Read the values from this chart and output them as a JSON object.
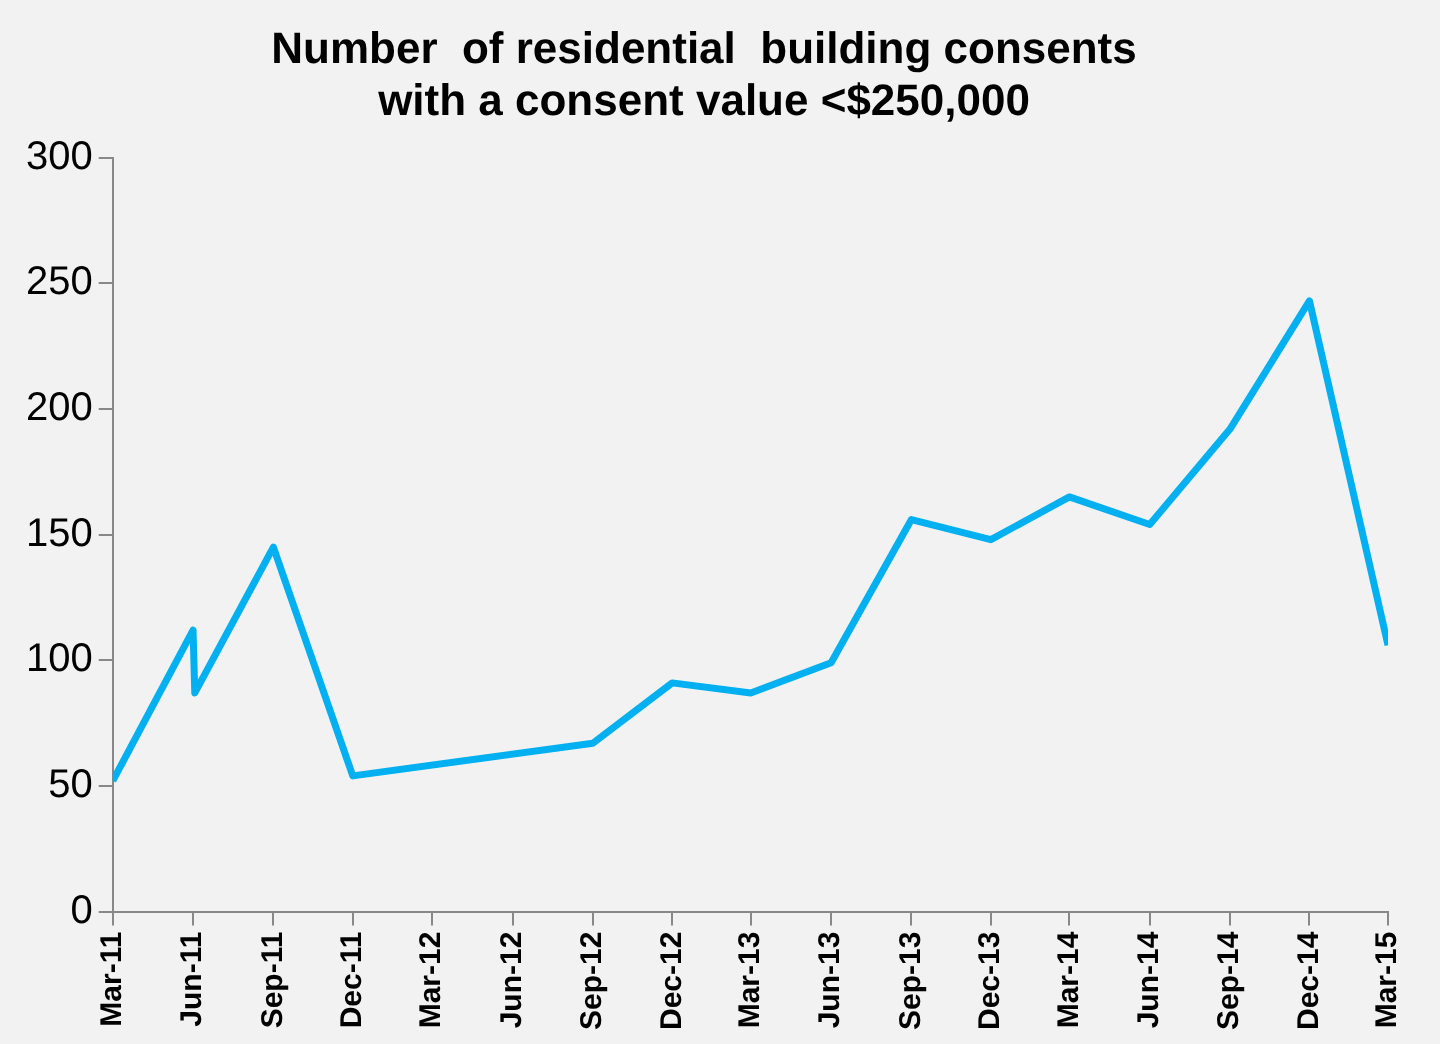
{
  "chart_data": {
    "type": "line",
    "title": [
      "Number  of residential  building consents",
      "with a consent value <$250,000"
    ],
    "x": [
      "2011-03-01",
      "2011-06-01",
      "2011-06-03",
      "2011-09-01",
      "2011-12-01",
      "2012-09-01",
      "2012-12-01",
      "2013-03-01",
      "2013-06-01",
      "2013-09-01",
      "2013-12-01",
      "2014-03-01",
      "2014-06-01",
      "2014-09-01",
      "2014-12-01",
      "2015-03-01"
    ],
    "series": [
      {
        "color": "#00b0f0",
        "values": [
          52,
          112,
          87,
          145,
          54,
          67,
          91,
          87,
          99,
          156,
          148,
          165,
          154,
          192,
          243,
          106
        ]
      }
    ],
    "xlim": [
      "2011-03-01",
      "2015-03-01"
    ],
    "xticks": [
      {
        "value": "2011-03-01",
        "label": "Mar-11"
      },
      {
        "value": "2011-06-01",
        "label": "Jun-11"
      },
      {
        "value": "2011-09-01",
        "label": "Sep-11"
      },
      {
        "value": "2011-12-01",
        "label": "Dec-11"
      },
      {
        "value": "2012-03-01",
        "label": "Mar-12"
      },
      {
        "value": "2012-06-01",
        "label": "Jun-12"
      },
      {
        "value": "2012-09-01",
        "label": "Sep-12"
      },
      {
        "value": "2012-12-01",
        "label": "Dec-12"
      },
      {
        "value": "2013-03-01",
        "label": "Mar-13"
      },
      {
        "value": "2013-06-01",
        "label": "Jun-13"
      },
      {
        "value": "2013-09-01",
        "label": "Sep-13"
      },
      {
        "value": "2013-12-01",
        "label": "Dec-13"
      },
      {
        "value": "2014-03-01",
        "label": "Mar-14"
      },
      {
        "value": "2014-06-01",
        "label": "Jun-14"
      },
      {
        "value": "2014-09-01",
        "label": "Sep-14"
      },
      {
        "value": "2014-12-01",
        "label": "Dec-14"
      },
      {
        "value": "2015-03-01",
        "label": "Mar-15"
      }
    ],
    "ylim": [
      0,
      300
    ],
    "yticks": [
      0,
      50,
      100,
      150,
      200,
      250,
      300
    ],
    "grid": false,
    "legend": false,
    "marker": "none",
    "line_style": "solid"
  }
}
